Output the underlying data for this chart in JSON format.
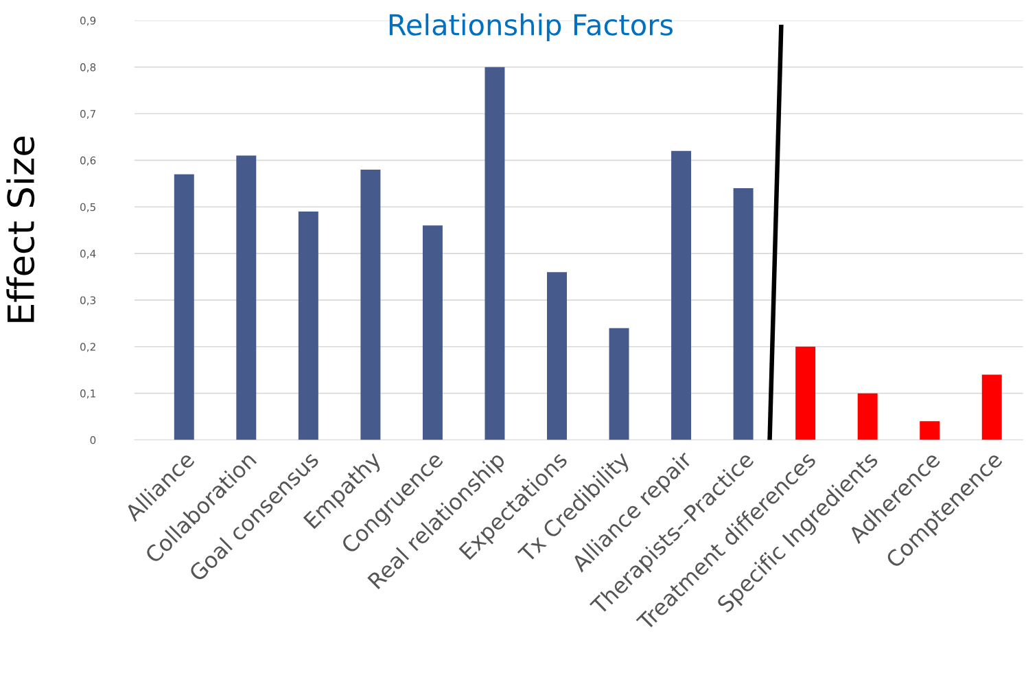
{
  "chart_data": {
    "type": "bar",
    "title": "Relationship Factors",
    "ylabel": "Effect Size",
    "categories": [
      "Alliance",
      "Collaboration",
      "Goal consensus",
      "Empathy",
      "Congruence",
      "Real relationship",
      "Expectations",
      "Tx Credibility",
      "Alliance repair",
      "Therapists--Practice",
      "Treatment differences",
      "Specific Ingredients",
      "Adherence",
      "Comptenence"
    ],
    "values": [
      0.57,
      0.61,
      0.49,
      0.58,
      0.46,
      0.8,
      0.36,
      0.24,
      0.62,
      0.54,
      0.2,
      0.1,
      0.04,
      0.14
    ],
    "colors": [
      "#475a8c",
      "#475a8c",
      "#475a8c",
      "#475a8c",
      "#475a8c",
      "#475a8c",
      "#475a8c",
      "#475a8c",
      "#475a8c",
      "#475a8c",
      "#ff0000",
      "#ff0000",
      "#ff0000",
      "#ff0000"
    ],
    "ylim": [
      0,
      0.9
    ],
    "yticks": [
      0,
      {
        "value": 0.1,
        "label": "0,1"
      },
      {
        "value": 0.2,
        "label": "0,2"
      },
      {
        "value": 0.3,
        "label": "0,3"
      },
      {
        "value": 0.4,
        "label": "0,4"
      },
      {
        "value": 0.5,
        "label": "0,5"
      },
      {
        "value": 0.6,
        "label": "0,6"
      },
      {
        "value": 0.7,
        "label": "0,7"
      },
      {
        "value": 0.8,
        "label": "0,8"
      },
      {
        "value": 0.9,
        "label": "0,9"
      }
    ],
    "grid": "y",
    "legend": false
  }
}
